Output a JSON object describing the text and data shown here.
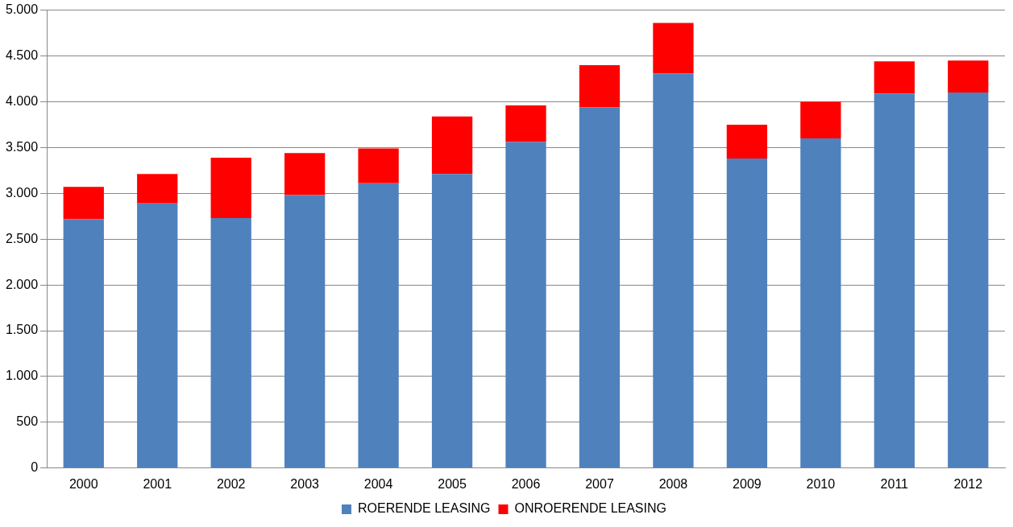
{
  "chart_data": {
    "type": "bar",
    "stacked": true,
    "categories": [
      "2000",
      "2001",
      "2002",
      "2003",
      "2004",
      "2005",
      "2006",
      "2007",
      "2008",
      "2009",
      "2010",
      "2011",
      "2012"
    ],
    "series": [
      {
        "name": "ROERENDE LEASING",
        "color": "#4f81bd",
        "values": [
          2720,
          2890,
          2730,
          2980,
          3110,
          3210,
          3560,
          3940,
          4310,
          3380,
          3600,
          4090,
          4100
        ]
      },
      {
        "name": "ONROERENDE LEASING",
        "color": "#ff0000",
        "values": [
          350,
          320,
          660,
          460,
          380,
          630,
          400,
          460,
          550,
          370,
          400,
          350,
          350
        ]
      }
    ],
    "ylim": [
      0,
      5000
    ],
    "yticks": [
      {
        "value": 0,
        "label": "0"
      },
      {
        "value": 500,
        "label": "500"
      },
      {
        "value": 1000,
        "label": "1.000"
      },
      {
        "value": 1500,
        "label": "1.500"
      },
      {
        "value": 2000,
        "label": "2.000"
      },
      {
        "value": 2500,
        "label": "2.500"
      },
      {
        "value": 3000,
        "label": "3.000"
      },
      {
        "value": 3500,
        "label": "3.500"
      },
      {
        "value": 4000,
        "label": "4.000"
      },
      {
        "value": 4500,
        "label": "4.500"
      },
      {
        "value": 5000,
        "label": "5.000"
      }
    ],
    "grid": "y",
    "legend": "bottom"
  }
}
